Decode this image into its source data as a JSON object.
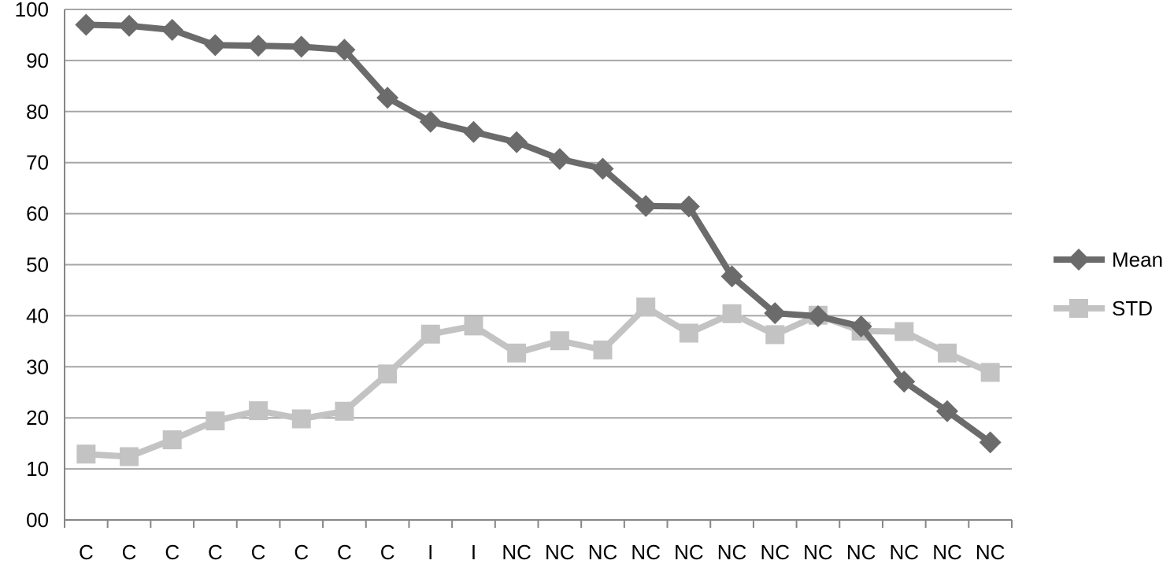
{
  "chart_data": {
    "type": "line",
    "categories": [
      "C",
      "C",
      "C",
      "C",
      "C",
      "C",
      "C",
      "C",
      "I",
      "I",
      "NC",
      "NC",
      "NC",
      "NC",
      "NC",
      "NC",
      "NC",
      "NC",
      "NC",
      "NC",
      "NC",
      "NC"
    ],
    "y_tick_labels": [
      "00",
      "10",
      "20",
      "30",
      "40",
      "50",
      "60",
      "70",
      "80",
      "90",
      "100"
    ],
    "y_ticks": [
      0,
      10,
      20,
      30,
      40,
      50,
      60,
      70,
      80,
      90,
      100
    ],
    "ylim": [
      0,
      100
    ],
    "grid": true,
    "legend_position": "right",
    "series": [
      {
        "name": "Mean",
        "marker": "diamond",
        "color": "#6b6b6b",
        "values": [
          97.0,
          96.8,
          96.0,
          93.0,
          92.9,
          92.7,
          92.1,
          82.7,
          78.0,
          76.0,
          74.0,
          70.7,
          68.8,
          61.5,
          61.4,
          47.7,
          40.5,
          39.9,
          37.9,
          27.1,
          21.3,
          15.2
        ]
      },
      {
        "name": "STD",
        "marker": "square",
        "color": "#c3c3c3",
        "values": [
          12.9,
          12.4,
          15.7,
          19.4,
          21.4,
          19.8,
          21.3,
          28.6,
          36.4,
          38.0,
          32.7,
          35.1,
          33.3,
          41.7,
          36.6,
          40.4,
          36.3,
          40.1,
          37.0,
          36.9,
          32.7,
          28.9
        ]
      }
    ]
  }
}
